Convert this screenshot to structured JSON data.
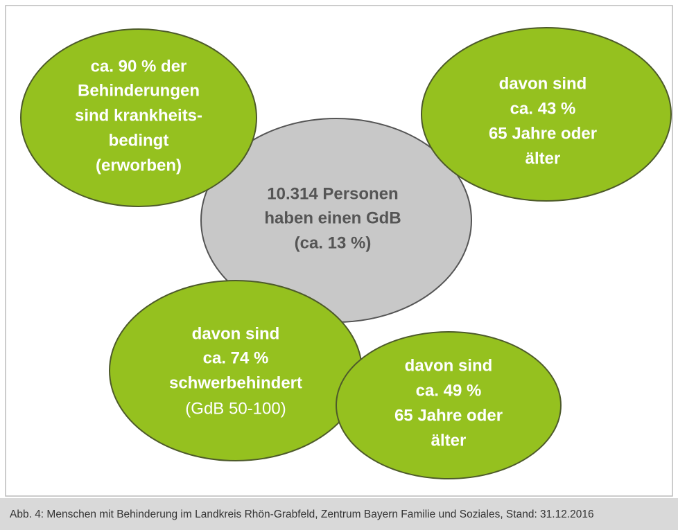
{
  "nodes": [
    {
      "lines": [
        "ca. 90 % der",
        "Behinderungen",
        "sind krankheits-",
        "bedingt",
        "(erworben)"
      ]
    },
    {
      "lines": [
        "davon sind",
        "ca. 43 %",
        "65 Jahre oder",
        "älter"
      ]
    },
    {
      "lines": [
        "10.314 Personen",
        "haben einen GdB",
        "(ca. 13 %)"
      ]
    },
    {
      "lines": [
        "davon sind",
        "ca. 74 %",
        "schwerbehindert",
        "(GdB 50-100)"
      ]
    },
    {
      "lines": [
        "davon sind",
        "ca. 49 %",
        "65 Jahre oder",
        "älter"
      ]
    }
  ],
  "caption": "Abb. 4: Menschen mit Behinderung im Landkreis Rhön-Grabfeld, Zentrum Bayern Familie und Soziales, Stand: 31.12.2016"
}
